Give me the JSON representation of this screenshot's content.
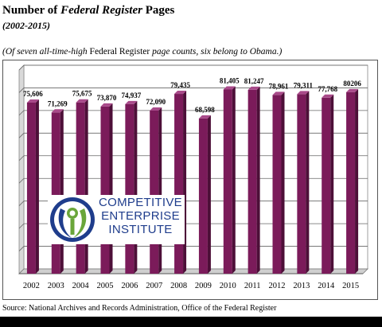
{
  "title": {
    "prefix": "Number of ",
    "italic": "Federal Register",
    "suffix": " Pages"
  },
  "subtitle": "(2002-2015)",
  "note": {
    "part1": "(Of seven all-time-high ",
    "part2": "Federal Register",
    "part3": " page counts, six belong to Obama.)"
  },
  "logo": {
    "line1": "COMPETITIVE",
    "line2": "ENTERPRISE",
    "line3": "INSTITUTE",
    "colors": {
      "blue": "#1f3d8c",
      "green": "#6aa63a"
    }
  },
  "source": "Source: National Archives and Records Administration, Office of the Federal Register",
  "chart_data": {
    "type": "bar",
    "title": "Number of Federal Register Pages",
    "subtitle": "(2002-2015)",
    "categories": [
      "2002",
      "2003",
      "2004",
      "2005",
      "2006",
      "2007",
      "2008",
      "2009",
      "2010",
      "2011",
      "2012",
      "2013",
      "2014",
      "2015"
    ],
    "values": [
      75606,
      71269,
      75675,
      73870,
      74937,
      72090,
      79435,
      68598,
      81405,
      81247,
      78961,
      79311,
      77768,
      80206
    ],
    "data_labels": [
      "75,606",
      "71,269",
      "75,675",
      "73,870",
      "74,937",
      "72,090",
      "79,435",
      "68,598",
      "81,405",
      "81,247",
      "78,961",
      "79,311",
      "77,768",
      "80206"
    ],
    "ylim": [
      0,
      90000
    ],
    "grid": true,
    "bar_color": "#7b1b5a",
    "xlabel": "",
    "ylabel": ""
  }
}
